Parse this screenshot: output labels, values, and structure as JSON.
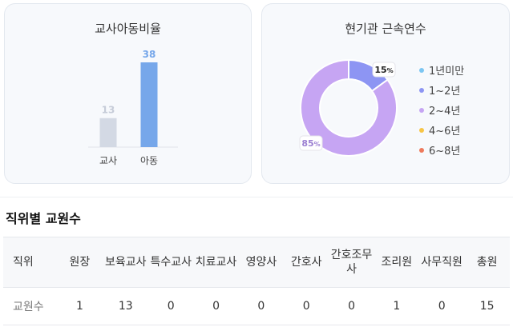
{
  "ratio_chart": {
    "title": "교사아동비율",
    "chart_data": {
      "type": "bar",
      "categories": [
        "교사",
        "아동"
      ],
      "values": [
        13,
        38
      ],
      "colors": [
        "#d3d9e4",
        "#76a7ea"
      ],
      "label_colors": [
        "#c6ccd8",
        "#76a7ea"
      ]
    }
  },
  "tenure_chart": {
    "title": "현기관 근속연수",
    "chart_data": {
      "type": "pie",
      "donut": true,
      "categories": [
        "1년미만",
        "1~2년",
        "2~4년",
        "4~6년",
        "6~8년"
      ],
      "values": [
        0,
        15,
        85,
        0,
        0
      ],
      "colors": [
        "#7cc6f2",
        "#8d95f3",
        "#c6a5f3",
        "#f7c546",
        "#ee7a5c"
      ],
      "data_labels": [
        {
          "value": "15",
          "unit": "%",
          "color": "#222222"
        },
        {
          "value": "85",
          "unit": "%",
          "color": "#9b7fd1"
        }
      ]
    }
  },
  "staff_table": {
    "title": "직위별 교원수",
    "headers": [
      "직위",
      "원장",
      "보육교사",
      "특수교사",
      "치료교사",
      "영양사",
      "간호사",
      "간호조무사",
      "조리원",
      "사무직원",
      "총원"
    ],
    "row": [
      "교원수",
      "1",
      "13",
      "0",
      "0",
      "0",
      "0",
      "0",
      "1",
      "0",
      "15"
    ]
  }
}
